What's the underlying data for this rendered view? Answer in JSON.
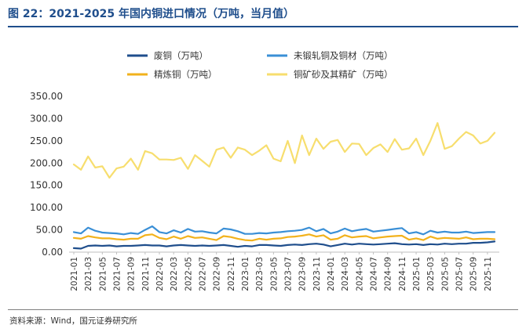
{
  "header": {
    "title": "图 22：2021-2025 年国内铜进口情况（万吨，当月值）"
  },
  "footer": {
    "source": "资料来源：Wind，国元证券研究所"
  },
  "colors": {
    "title": "#1f4e8c",
    "scrap": "#1f4e8c",
    "unwrought": "#3a8fd6",
    "refined": "#f2b21c",
    "ore": "#f7de6e",
    "axis": "#bfbfbf"
  },
  "chart_data": {
    "type": "line",
    "title": "",
    "xlabel": "",
    "ylabel": "",
    "ylim": [
      0,
      350
    ],
    "yticks": [
      "0.00",
      "50.00",
      "100.00",
      "150.00",
      "200.00",
      "250.00",
      "300.00",
      "350.00"
    ],
    "legend_position": "top",
    "x": [
      "2021-01",
      "2021-02",
      "2021-03",
      "2021-04",
      "2021-05",
      "2021-06",
      "2021-07",
      "2021-08",
      "2021-09",
      "2021-10",
      "2021-11",
      "2021-12",
      "2022-01",
      "2022-02",
      "2022-03",
      "2022-04",
      "2022-05",
      "2022-06",
      "2022-07",
      "2022-08",
      "2022-09",
      "2022-10",
      "2022-11",
      "2022-12",
      "2023-01",
      "2023-02",
      "2023-03",
      "2023-04",
      "2023-05",
      "2023-06",
      "2023-07",
      "2023-08",
      "2023-09",
      "2023-10",
      "2023-11",
      "2023-12",
      "2024-01",
      "2024-02",
      "2024-03",
      "2024-04",
      "2024-05",
      "2024-06",
      "2024-07",
      "2024-08",
      "2024-09",
      "2024-10",
      "2024-11",
      "2024-12",
      "2025-01",
      "2025-02",
      "2025-03",
      "2025-04",
      "2025-05",
      "2025-06",
      "2025-07",
      "2025-08",
      "2025-09",
      "2025-10",
      "2025-11",
      "2025-12"
    ],
    "xtick_labels": [
      "2021-01",
      "2021-03",
      "2021-05",
      "2021-07",
      "2021-09",
      "2021-11",
      "2022-01",
      "2022-03",
      "2022-05",
      "2022-07",
      "2022-09",
      "2022-11",
      "2023-01",
      "2023-03",
      "2023-05",
      "2023-07",
      "2023-09",
      "2023-11",
      "2024-01",
      "2024-03",
      "2024-05",
      "2024-07",
      "2024-09",
      "2024-11",
      "2025-01",
      "2025-03",
      "2025-05",
      "2025-07",
      "2025-09",
      "2025-11"
    ],
    "series": [
      {
        "name": "废铜（万吨）",
        "key": "scrap",
        "values": [
          9,
          8,
          14,
          15,
          14,
          15,
          13,
          14,
          14,
          15,
          16,
          15,
          15,
          13,
          15,
          16,
          15,
          14,
          15,
          14,
          15,
          16,
          14,
          12,
          14,
          13,
          16,
          16,
          15,
          14,
          16,
          17,
          16,
          18,
          19,
          17,
          13,
          16,
          19,
          17,
          19,
          18,
          17,
          18,
          19,
          20,
          18,
          17,
          18,
          16,
          18,
          17,
          19,
          18,
          19,
          19,
          21,
          21,
          22,
          24
        ]
      },
      {
        "name": "未锻轧铜及铜材（万吨）",
        "key": "unwrought",
        "values": [
          45,
          42,
          55,
          48,
          44,
          43,
          42,
          40,
          43,
          41,
          50,
          58,
          45,
          42,
          49,
          44,
          52,
          46,
          47,
          44,
          42,
          53,
          51,
          47,
          41,
          41,
          43,
          42,
          44,
          45,
          47,
          48,
          50,
          55,
          47,
          52,
          42,
          46,
          53,
          47,
          50,
          52,
          46,
          48,
          50,
          52,
          54,
          42,
          45,
          40,
          48,
          44,
          46,
          44,
          44,
          46,
          43,
          44,
          45,
          45
        ]
      },
      {
        "name": "精炼铜（万吨）",
        "key": "refined",
        "values": [
          32,
          30,
          36,
          33,
          31,
          31,
          29,
          28,
          30,
          30,
          38,
          40,
          32,
          29,
          35,
          30,
          36,
          32,
          33,
          30,
          27,
          36,
          34,
          30,
          27,
          26,
          30,
          28,
          30,
          31,
          34,
          35,
          37,
          40,
          35,
          38,
          28,
          30,
          38,
          33,
          35,
          36,
          31,
          33,
          35,
          36,
          37,
          28,
          31,
          27,
          35,
          30,
          32,
          31,
          30,
          33,
          29,
          30,
          30,
          29
        ]
      },
      {
        "name": "铜矿砂及其精矿（万吨）",
        "key": "ore",
        "values": [
          197,
          185,
          215,
          190,
          193,
          167,
          188,
          192,
          210,
          185,
          227,
          222,
          208,
          208,
          207,
          212,
          187,
          218,
          205,
          192,
          230,
          235,
          212,
          235,
          230,
          218,
          228,
          240,
          210,
          204,
          250,
          200,
          262,
          218,
          255,
          232,
          248,
          252,
          225,
          244,
          243,
          218,
          234,
          242,
          225,
          254,
          230,
          233,
          255,
          218,
          250,
          290,
          232,
          238,
          255,
          270,
          262,
          244,
          250,
          268
        ]
      }
    ]
  }
}
